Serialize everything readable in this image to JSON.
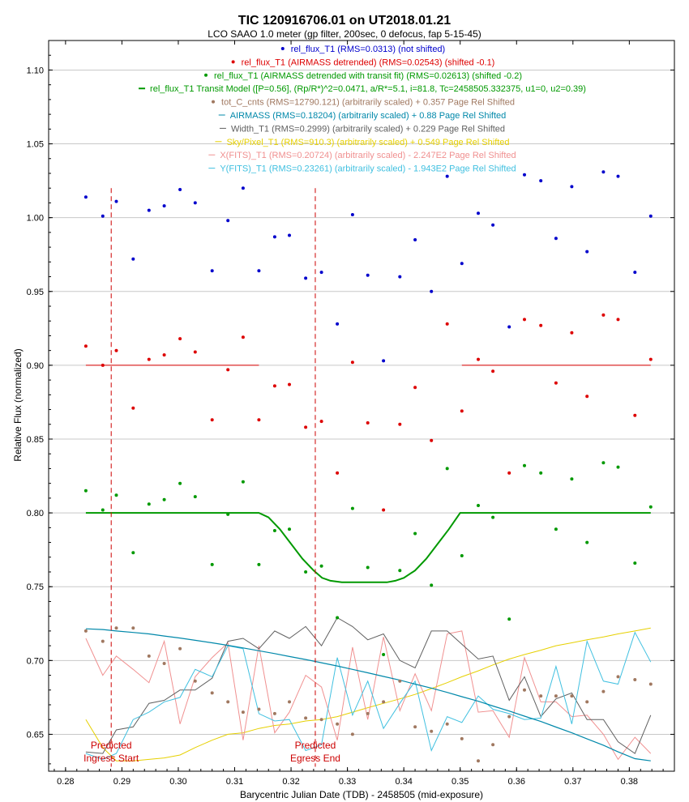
{
  "chart_data": {
    "type": "scatter",
    "title": "TIC 120916706.01 on UT2018.01.21",
    "subtitle": "LCO SAAO 1.0 meter (gp filter, 200sec, 0 defocus, fap 5-15-45)",
    "xlabel": "Barycentric Julian Date (TDB) - 2458505 (mid-exposure)",
    "ylabel": "Relative Flux (normalized)",
    "xlim": [
      0.277,
      0.388
    ],
    "ylim": [
      0.625,
      1.12
    ],
    "x_ticks": [
      "0.28",
      "0.29",
      "0.30",
      "0.31",
      "0.32",
      "0.33",
      "0.34",
      "0.35",
      "0.36",
      "0.37",
      "0.38"
    ],
    "y_ticks": [
      "0.65",
      "0.70",
      "0.75",
      "0.80",
      "0.85",
      "0.90",
      "0.95",
      "1.00",
      "1.05",
      "1.10"
    ],
    "grid": "horizontal",
    "legend_placement": "top-center",
    "legend": [
      {
        "text": "rel_flux_T1 (RMS=0.0313) (not shifted)",
        "color": "#0000cc",
        "marker": "dot"
      },
      {
        "text": "rel_flux_T1 (AIRMASS detrended) (RMS=0.02543) (shifted -0.1)",
        "color": "#dd0000",
        "marker": "dot"
      },
      {
        "text": "rel_flux_T1 (AIRMASS detrended with transit fit) (RMS=0.02613) (shifted -0.2)",
        "color": "#009900",
        "marker": "dot"
      },
      {
        "text": "rel_flux_T1 Transit Model ([P=0.56], (Rp/R*)^2=0.0471, a/R*=5.1, i=81.8, Tc=2458505.332375, u1=0, u2=0.39)",
        "color": "#009900",
        "marker": "line"
      },
      {
        "text": "tot_C_cnts (RMS=12790.121) (arbitrarily scaled) + 0.357 Page Rel Shifted",
        "color": "#a07860",
        "marker": "dot"
      },
      {
        "text": "AIRMASS (RMS=0.18204) (arbitrarily scaled) + 0.88 Page Rel Shifted",
        "color": "#0088aa",
        "marker": "line"
      },
      {
        "text": "Width_T1 (RMS=0.2999) (arbitrarily scaled) + 0.229 Page Rel Shifted",
        "color": "#606060",
        "marker": "line"
      },
      {
        "text": "Sky/Pixel_T1 (RMS=910.3) (arbitrarily scaled) + 0.549 Page Rel Shifted",
        "color": "#e6d000",
        "marker": "line"
      },
      {
        "text": "X(FITS)_T1 (RMS=0.20724) (arbitrarily scaled) - 2.247E2 Page Rel Shifted",
        "color": "#f09090",
        "marker": "line"
      },
      {
        "text": "Y(FITS)_T1 (RMS=0.23261) (arbitrarily scaled) - 1.943E2 Page Rel Shifted",
        "color": "#40c0e0",
        "marker": "line"
      }
    ],
    "annotations": [
      {
        "lines": [
          "Predicted",
          "Ingress Start"
        ],
        "x": 0.2881
      },
      {
        "lines": [
          "Predicted",
          "Egress End"
        ],
        "x": 0.3243
      }
    ],
    "x": [
      0.2836,
      0.2866,
      0.289,
      0.292,
      0.2948,
      0.2975,
      0.3003,
      0.303,
      0.306,
      0.3088,
      0.3115,
      0.3143,
      0.3171,
      0.3197,
      0.3226,
      0.3254,
      0.3282,
      0.3309,
      0.3336,
      0.3364,
      0.3393,
      0.342,
      0.3449,
      0.3477,
      0.3503,
      0.3532,
      0.3558,
      0.3587,
      0.3614,
      0.3643,
      0.367,
      0.3698,
      0.3725,
      0.3754,
      0.378,
      0.381,
      0.3838
    ],
    "series": [
      {
        "name": "rel_flux_T1 (RMS=0.0313) (not shifted)",
        "color": "#0000cc",
        "values": [
          1.014,
          1.001,
          1.011,
          0.972,
          1.005,
          1.008,
          1.019,
          1.01,
          0.964,
          0.998,
          1.02,
          0.964,
          0.987,
          0.988,
          0.959,
          0.963,
          0.928,
          1.002,
          0.961,
          0.903,
          0.96,
          0.985,
          0.95,
          1.028,
          0.969,
          1.003,
          0.995,
          0.926,
          1.029,
          1.025,
          0.986,
          1.021,
          0.977,
          1.031,
          1.028,
          0.963,
          1.001
        ]
      },
      {
        "name": "rel_flux_T1 (AIRMASS detrended) (RMS=0.02543) (shifted -0.1)",
        "color": "#dd0000",
        "values": [
          0.913,
          0.9,
          0.91,
          0.871,
          0.904,
          0.907,
          0.918,
          0.909,
          0.863,
          0.897,
          0.919,
          0.863,
          0.886,
          0.887,
          0.858,
          0.862,
          0.827,
          0.902,
          0.861,
          0.802,
          0.86,
          0.885,
          0.849,
          0.928,
          0.869,
          0.904,
          0.896,
          0.827,
          0.931,
          0.927,
          0.888,
          0.922,
          0.879,
          0.934,
          0.931,
          0.866,
          0.904
        ]
      },
      {
        "name": "rel_flux_T1 (AIRMASS detrended with transit fit) (RMS=0.02613) (shifted -0.2)",
        "color": "#009900",
        "values": [
          0.815,
          0.802,
          0.812,
          0.773,
          0.806,
          0.809,
          0.82,
          0.811,
          0.765,
          0.799,
          0.821,
          0.765,
          0.788,
          0.789,
          0.76,
          0.764,
          0.729,
          0.803,
          0.763,
          0.704,
          0.761,
          0.786,
          0.751,
          0.83,
          0.771,
          0.805,
          0.797,
          0.728,
          0.832,
          0.827,
          0.789,
          0.823,
          0.78,
          0.834,
          0.831,
          0.766,
          0.804
        ]
      },
      {
        "name": "tot_C_cnts (RMS=12790.121) (arbitrarily scaled) + 0.357 Page Rel Shifted",
        "color": "#a07860",
        "values": [
          0.72,
          0.713,
          0.722,
          0.722,
          0.703,
          0.698,
          0.708,
          0.686,
          0.678,
          0.672,
          0.665,
          0.667,
          0.664,
          0.672,
          0.661,
          0.66,
          0.657,
          0.65,
          0.664,
          0.672,
          0.686,
          0.655,
          0.652,
          0.657,
          0.647,
          0.632,
          0.643,
          0.662,
          0.68,
          0.676,
          0.676,
          0.676,
          0.672,
          0.679,
          0.689,
          0.687,
          0.684
        ]
      },
      {
        "name": "AIRMASS (RMS=0.18204) (arbitrarily scaled) + 0.88 Page Rel Shifted",
        "color": "#0088aa",
        "values": [
          0.7215,
          0.721,
          0.72,
          0.719,
          0.718,
          0.7166,
          0.7152,
          0.7137,
          0.712,
          0.7103,
          0.7085,
          0.7066,
          0.7047,
          0.7027,
          0.7007,
          0.6985,
          0.6963,
          0.694,
          0.6917,
          0.6892,
          0.6867,
          0.684,
          0.6813,
          0.6784,
          0.6755,
          0.6724,
          0.6692,
          0.6658,
          0.6623,
          0.6587,
          0.6549,
          0.651,
          0.6469,
          0.6426,
          0.6381,
          0.6335,
          0.632
        ]
      },
      {
        "name": "Width_T1 (RMS=0.2999) (arbitrarily scaled) + 0.229 Page Rel Shifted",
        "color": "#606060",
        "values": [
          0.638,
          0.637,
          0.653,
          0.655,
          0.671,
          0.673,
          0.68,
          0.68,
          0.688,
          0.713,
          0.715,
          0.708,
          0.72,
          0.715,
          0.723,
          0.71,
          0.729,
          0.723,
          0.714,
          0.718,
          0.7,
          0.695,
          0.72,
          0.72,
          0.711,
          0.701,
          0.703,
          0.673,
          0.689,
          0.662,
          0.674,
          0.678,
          0.66,
          0.66,
          0.645,
          0.637,
          0.663
        ]
      },
      {
        "name": "Sky/Pixel_T1 (RMS=910.3) (arbitrarily scaled) + 0.549 Page Rel Shifted",
        "color": "#e6d000",
        "values": [
          0.66,
          0.641,
          0.632,
          0.632,
          0.633,
          0.634,
          0.636,
          0.641,
          0.646,
          0.65,
          0.651,
          0.654,
          0.656,
          0.657,
          0.659,
          0.66,
          0.662,
          0.665,
          0.668,
          0.671,
          0.674,
          0.677,
          0.681,
          0.685,
          0.689,
          0.693,
          0.697,
          0.701,
          0.704,
          0.707,
          0.71,
          0.712,
          0.714,
          0.716,
          0.718,
          0.72,
          0.722
        ]
      },
      {
        "name": "X(FITS)_T1 (RMS=0.20724) (arbitrarily scaled) - 2.247E2 Page Rel Shifted",
        "color": "#f09090",
        "values": [
          0.715,
          0.69,
          0.703,
          0.694,
          0.685,
          0.713,
          0.657,
          0.689,
          0.702,
          0.712,
          0.646,
          0.71,
          0.651,
          0.665,
          0.69,
          0.682,
          0.646,
          0.709,
          0.66,
          0.716,
          0.666,
          0.691,
          0.666,
          0.718,
          0.72,
          0.665,
          0.666,
          0.648,
          0.702,
          0.672,
          0.672,
          0.662,
          0.663,
          0.65,
          0.633,
          0.648,
          0.637
        ]
      },
      {
        "name": "Y(FITS)_T1 (RMS=0.23261) (arbitrarily scaled) - 1.943E2 Page Rel Shifted",
        "color": "#40c0e0",
        "values": [
          0.637,
          0.633,
          0.637,
          0.66,
          0.665,
          0.672,
          0.675,
          0.694,
          0.689,
          0.71,
          0.708,
          0.664,
          0.659,
          0.66,
          0.639,
          0.643,
          0.702,
          0.663,
          0.686,
          0.654,
          0.671,
          0.686,
          0.639,
          0.662,
          0.658,
          0.676,
          0.667,
          0.664,
          0.66,
          0.661,
          0.696,
          0.657,
          0.713,
          0.686,
          0.684,
          0.719,
          0.699
        ]
      }
    ],
    "airmass_fit_line": {
      "name": "",
      "color": "#dd0000",
      "value": 0.9,
      "segments": [
        [
          0.2836,
          0.3143
        ],
        [
          0.3503,
          0.3838
        ]
      ]
    },
    "transit_model": {
      "name": "rel_flux_T1 Transit Model ([P=0.56], (Rp/R*)^2=0.0471, a/R*=5.1, i=81.8, Tc=2458505.332375, u1=0, u2=0.39)",
      "color": "#009900",
      "x": [
        0.2836,
        0.3143,
        0.316,
        0.318,
        0.32,
        0.322,
        0.324,
        0.3255,
        0.327,
        0.329,
        0.331,
        0.333,
        0.335,
        0.337,
        0.3385,
        0.34,
        0.342,
        0.344,
        0.346,
        0.348,
        0.35,
        0.3838
      ],
      "values": [
        0.8,
        0.8,
        0.797,
        0.789,
        0.779,
        0.769,
        0.761,
        0.756,
        0.754,
        0.753,
        0.753,
        0.753,
        0.753,
        0.753,
        0.754,
        0.756,
        0.761,
        0.769,
        0.779,
        0.789,
        0.8,
        0.8
      ]
    }
  }
}
